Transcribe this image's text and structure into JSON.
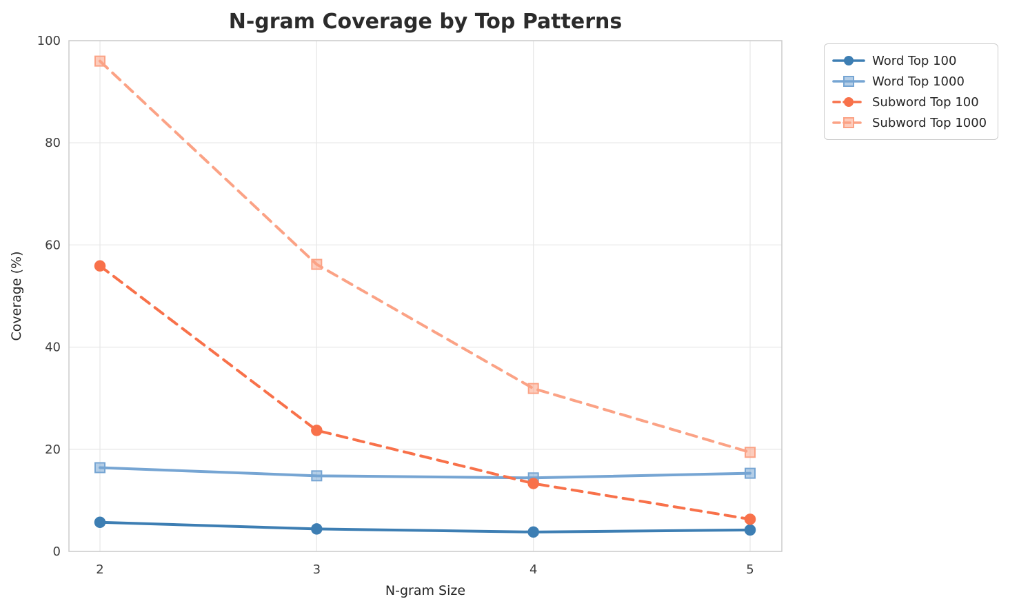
{
  "title": "N-gram Coverage by Top Patterns",
  "chart_data": {
    "type": "line",
    "title": "N-gram Coverage by Top Patterns",
    "xlabel": "N-gram Size",
    "ylabel": "Coverage (%)",
    "x": [
      2,
      3,
      4,
      5
    ],
    "x_tick_labels": [
      "2",
      "3",
      "4",
      "5"
    ],
    "y_tick_labels": [
      "0",
      "20",
      "40",
      "60",
      "80",
      "100"
    ],
    "y_ticks": [
      0,
      20,
      40,
      60,
      80,
      100
    ],
    "ylim": [
      0,
      100
    ],
    "grid": true,
    "legend_position": "outside-upper-right",
    "series": [
      {
        "name": "Word Top 100",
        "values": [
          5.7,
          4.4,
          3.8,
          4.2
        ],
        "color": "#3d7eb3",
        "line_style": "solid",
        "marker": "circle"
      },
      {
        "name": "Word Top 1000",
        "values": [
          16.4,
          14.8,
          14.4,
          15.3
        ],
        "color": "#76a5d3",
        "line_style": "solid",
        "marker": "square"
      },
      {
        "name": "Subword Top 100",
        "values": [
          55.9,
          23.7,
          13.3,
          6.3
        ],
        "color": "#f8714a",
        "line_style": "dashed",
        "marker": "circle"
      },
      {
        "name": "Subword Top 1000",
        "values": [
          96.0,
          56.2,
          31.9,
          19.4
        ],
        "color": "#fba285",
        "line_style": "dashed",
        "marker": "square"
      }
    ],
    "style": {
      "grid_color": "#e8e8e8",
      "spine_color": "#cccccc",
      "background": "#ffffff"
    }
  }
}
